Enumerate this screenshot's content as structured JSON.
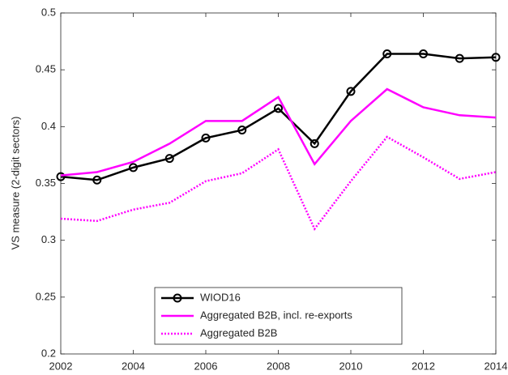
{
  "chart_data": {
    "type": "line",
    "ylabel": "VS measure (2-digit sectors)",
    "x": [
      2002,
      2003,
      2004,
      2005,
      2006,
      2007,
      2008,
      2009,
      2010,
      2011,
      2012,
      2013,
      2014
    ],
    "series": [
      {
        "name": "WIOD16",
        "color": "#000000",
        "linestyle": "solid",
        "marker": "o",
        "values": [
          0.356,
          0.353,
          0.364,
          0.372,
          0.39,
          0.397,
          0.416,
          0.385,
          0.431,
          0.464,
          0.464,
          0.46,
          0.461
        ]
      },
      {
        "name": "Aggregated B2B, incl. re-exports",
        "color": "#ff00ff",
        "linestyle": "solid",
        "values": [
          0.357,
          0.36,
          0.369,
          0.385,
          0.405,
          0.405,
          0.426,
          0.367,
          0.405,
          0.433,
          0.417,
          0.41,
          0.408
        ]
      },
      {
        "name": "Aggregated B2B",
        "color": "#ff00ff",
        "linestyle": "dotted",
        "values": [
          0.319,
          0.317,
          0.327,
          0.333,
          0.352,
          0.359,
          0.38,
          0.31,
          0.352,
          0.391,
          0.373,
          0.354,
          0.36
        ]
      }
    ],
    "xlim": [
      2002,
      2014
    ],
    "xticks": [
      2002,
      2004,
      2006,
      2008,
      2010,
      2012,
      2014
    ],
    "ylim": [
      0.2,
      0.5
    ],
    "yticks": [
      0.2,
      0.25,
      0.3,
      0.35,
      0.4,
      0.45,
      0.5
    ],
    "grid": false,
    "legend": "lower center"
  }
}
